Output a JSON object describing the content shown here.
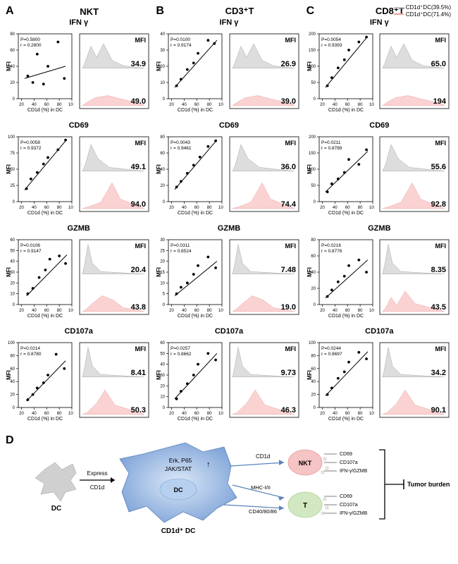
{
  "columns": [
    {
      "letter": "A",
      "title_html": "NKT"
    },
    {
      "letter": "B",
      "title_html": "CD3⁺T"
    },
    {
      "letter": "C",
      "title_html": "CD8⁺T"
    }
  ],
  "legend": {
    "gray": {
      "label": "CD1d⁺DC(39.5%)",
      "color": "#bdbdbd"
    },
    "pink": {
      "label": "CD1d⁺DC(71.4%)",
      "color": "#f29b9b"
    }
  },
  "markers": [
    "IFN γ",
    "CD69",
    "GZMB",
    "CD107a"
  ],
  "axis": {
    "ylabel": "MFI",
    "xlabel": "CD1d (%) in DC",
    "xticks": [
      20,
      40,
      60,
      80,
      100
    ]
  },
  "data": {
    "A": {
      "IFN γ": {
        "p": "P=0.5800",
        "r": "r = 0.2800",
        "ymax": 80,
        "ystep": 20,
        "points": [
          [
            30,
            28
          ],
          [
            38,
            20
          ],
          [
            45,
            55
          ],
          [
            55,
            18
          ],
          [
            62,
            40
          ],
          [
            78,
            70
          ],
          [
            88,
            25
          ]
        ],
        "trend": [
          [
            25,
            25
          ],
          [
            90,
            40
          ]
        ],
        "mfi_gray": "34.9",
        "mfi_pink": "49.0",
        "hist_gray_shape": "bimodal_low",
        "hist_pink_shape": "low_wide"
      },
      "CD69": {
        "p": "P=0.0058",
        "r": "r = 0.9372",
        "ymax": 100,
        "ystep": 25,
        "points": [
          [
            28,
            20
          ],
          [
            35,
            35
          ],
          [
            45,
            45
          ],
          [
            55,
            58
          ],
          [
            62,
            68
          ],
          [
            78,
            80
          ],
          [
            90,
            95
          ]
        ],
        "trend": [
          [
            25,
            18
          ],
          [
            92,
            96
          ]
        ],
        "mfi_gray": "49.1",
        "mfi_pink": "94.0",
        "hist_gray_shape": "peak_left",
        "hist_pink_shape": "peak_right"
      },
      "GZMB": {
        "p": "P=0.0106",
        "r": "r = 0.9147",
        "ymax": 60,
        "ystep": 10,
        "points": [
          [
            30,
            10
          ],
          [
            38,
            15
          ],
          [
            48,
            25
          ],
          [
            58,
            32
          ],
          [
            65,
            42
          ],
          [
            80,
            45
          ],
          [
            90,
            38
          ]
        ],
        "trend": [
          [
            28,
            8
          ],
          [
            92,
            46
          ]
        ],
        "mfi_gray": "20.4",
        "mfi_pink": "43.8",
        "hist_gray_shape": "tall_narrow_left",
        "hist_pink_shape": "wide_right"
      },
      "CD107a": {
        "p": "P=0.0214",
        "r": "r = 0.8780",
        "ymax": 100,
        "ystep": 20,
        "points": [
          [
            30,
            12
          ],
          [
            38,
            20
          ],
          [
            45,
            30
          ],
          [
            55,
            38
          ],
          [
            62,
            50
          ],
          [
            75,
            82
          ],
          [
            88,
            60
          ]
        ],
        "trend": [
          [
            28,
            10
          ],
          [
            90,
            72
          ]
        ],
        "mfi_gray": "8.41",
        "mfi_pink": "50.3",
        "hist_gray_shape": "tall_narrow_left",
        "hist_pink_shape": "peak_mid"
      }
    },
    "B": {
      "IFN γ": {
        "p": "P=0.0100",
        "r": "r = 0.9174",
        "ymax": 40,
        "ystep": 10,
        "points": [
          [
            28,
            8
          ],
          [
            35,
            12
          ],
          [
            45,
            18
          ],
          [
            55,
            22
          ],
          [
            62,
            28
          ],
          [
            78,
            36
          ],
          [
            88,
            34
          ]
        ],
        "trend": [
          [
            25,
            7
          ],
          [
            92,
            36
          ]
        ],
        "mfi_gray": "26.9",
        "mfi_pink": "39.0",
        "hist_gray_shape": "bimodal_low",
        "hist_pink_shape": "low_wide"
      },
      "CD69": {
        "p": "P=0.0043",
        "r": "r = 0.9461",
        "ymax": 80,
        "ystep": 20,
        "points": [
          [
            28,
            18
          ],
          [
            35,
            25
          ],
          [
            45,
            35
          ],
          [
            55,
            45
          ],
          [
            65,
            55
          ],
          [
            78,
            68
          ],
          [
            90,
            75
          ]
        ],
        "trend": [
          [
            25,
            15
          ],
          [
            92,
            76
          ]
        ],
        "mfi_gray": "36.0",
        "mfi_pink": "74.4",
        "hist_gray_shape": "peak_left",
        "hist_pink_shape": "peak_right"
      },
      "GZMB": {
        "p": "P=0.0311",
        "r": "r = 0.8524",
        "ymax": 30,
        "ystep": 5,
        "points": [
          [
            28,
            5
          ],
          [
            35,
            8
          ],
          [
            45,
            10
          ],
          [
            55,
            14
          ],
          [
            62,
            18
          ],
          [
            78,
            22
          ],
          [
            90,
            17
          ]
        ],
        "trend": [
          [
            25,
            4
          ],
          [
            92,
            20
          ]
        ],
        "mfi_gray": "7.48",
        "mfi_pink": "19.0",
        "hist_gray_shape": "tall_narrow_left",
        "hist_pink_shape": "wide_right"
      },
      "CD107a": {
        "p": "P=0.0257",
        "r": "r = 0.8662",
        "ymax": 60,
        "ystep": 10,
        "points": [
          [
            28,
            8
          ],
          [
            35,
            15
          ],
          [
            45,
            22
          ],
          [
            55,
            30
          ],
          [
            62,
            40
          ],
          [
            78,
            50
          ],
          [
            90,
            44
          ]
        ],
        "trend": [
          [
            25,
            8
          ],
          [
            92,
            50
          ]
        ],
        "mfi_gray": "9.73",
        "mfi_pink": "46.3",
        "hist_gray_shape": "tall_narrow_left",
        "hist_pink_shape": "peak_mid"
      }
    },
    "C": {
      "IFN γ": {
        "p": "P=0.0054",
        "r": "r = 0.9393",
        "ymax": 200,
        "ystep": 50,
        "points": [
          [
            28,
            40
          ],
          [
            35,
            65
          ],
          [
            45,
            95
          ],
          [
            55,
            120
          ],
          [
            62,
            150
          ],
          [
            78,
            175
          ],
          [
            90,
            190
          ]
        ],
        "trend": [
          [
            25,
            35
          ],
          [
            92,
            192
          ]
        ],
        "mfi_gray": "65.0",
        "mfi_pink": "194",
        "hist_gray_shape": "bimodal_low",
        "hist_pink_shape": "low_wide"
      },
      "CD69": {
        "p": "P=0.0211",
        "r": "r = 0.8789",
        "ymax": 200,
        "ystep": 50,
        "points": [
          [
            28,
            30
          ],
          [
            35,
            55
          ],
          [
            45,
            70
          ],
          [
            55,
            90
          ],
          [
            62,
            130
          ],
          [
            78,
            115
          ],
          [
            90,
            160
          ]
        ],
        "trend": [
          [
            25,
            30
          ],
          [
            92,
            155
          ]
        ],
        "mfi_gray": "55.6",
        "mfi_pink": "92.8",
        "hist_gray_shape": "peak_left",
        "hist_pink_shape": "peak_right"
      },
      "GZMB": {
        "p": "P=0.0216",
        "r": "r = 0.8776",
        "ymax": 80,
        "ystep": 20,
        "points": [
          [
            28,
            10
          ],
          [
            35,
            18
          ],
          [
            45,
            28
          ],
          [
            55,
            35
          ],
          [
            62,
            48
          ],
          [
            78,
            55
          ],
          [
            90,
            40
          ]
        ],
        "trend": [
          [
            25,
            8
          ],
          [
            92,
            55
          ]
        ],
        "mfi_gray": "8.35",
        "mfi_pink": "43.5",
        "hist_gray_shape": "tall_narrow_left",
        "hist_pink_shape": "bimodal_right"
      },
      "CD107a": {
        "p": "P=0.0244",
        "r": "r = 0.8697",
        "ymax": 100,
        "ystep": 20,
        "points": [
          [
            28,
            20
          ],
          [
            35,
            30
          ],
          [
            45,
            45
          ],
          [
            55,
            55
          ],
          [
            62,
            70
          ],
          [
            78,
            85
          ],
          [
            90,
            75
          ]
        ],
        "trend": [
          [
            25,
            18
          ],
          [
            92,
            86
          ]
        ],
        "mfi_gray": "34.2",
        "mfi_pink": "90.1",
        "hist_gray_shape": "tall_narrow_left",
        "hist_pink_shape": "peak_mid"
      }
    }
  },
  "panel_d": {
    "letter": "D",
    "dc_label": "DC",
    "express_label": "Express",
    "cd1d_arrow_label": "CD1d",
    "cd1d_dc_label": "CD1d⁺ DC",
    "signaling": [
      "Erk, P65",
      "JAK/STAT"
    ],
    "up_arrow": "↑",
    "dc_center": "DC",
    "branches": {
      "top": "CD1d",
      "mid": "MHC-I/II",
      "bot": "CD40/80/86"
    },
    "nkt": {
      "label": "NKT",
      "color": "#f5c4c4",
      "lines": [
        "CD69",
        "CD107a",
        "IFN-γ/GZMB"
      ]
    },
    "t": {
      "label": "T",
      "color": "#d2e8c2",
      "lines": [
        "CD69",
        "CD107a",
        "IFN-γ/GZMB"
      ]
    },
    "outcome": "Tumor burden",
    "colors": {
      "dc_gray": "#d0d0d0",
      "dc_blue_light": "#c9dbf3",
      "dc_blue_dark": "#6d93ce"
    }
  }
}
